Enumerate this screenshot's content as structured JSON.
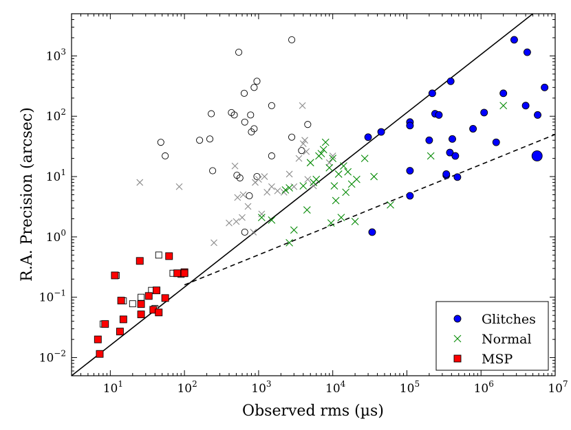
{
  "chart_data": {
    "type": "scatter",
    "xlabel": "Observed rms (µs)",
    "ylabel": "R.A. Precision (arcsec)",
    "x_scale": "log",
    "y_scale": "log",
    "xlim": [
      3,
      10000000
    ],
    "ylim": [
      0.005,
      5000
    ],
    "grid": false,
    "legend_position": "bottom-right",
    "x_ticks": [
      {
        "value": 10,
        "base": "10",
        "exp": "1"
      },
      {
        "value": 100,
        "base": "10",
        "exp": "2"
      },
      {
        "value": 1000,
        "base": "10",
        "exp": "3"
      },
      {
        "value": 10000,
        "base": "10",
        "exp": "4"
      },
      {
        "value": 100000,
        "base": "10",
        "exp": "5"
      },
      {
        "value": 1000000,
        "base": "10",
        "exp": "6"
      },
      {
        "value": 10000000,
        "base": "10",
        "exp": "7"
      }
    ],
    "y_ticks": [
      {
        "value": 0.01,
        "base": "10",
        "exp": "−2"
      },
      {
        "value": 0.1,
        "base": "10",
        "exp": "−1"
      },
      {
        "value": 1,
        "base": "10",
        "exp": "0"
      },
      {
        "value": 10,
        "base": "10",
        "exp": "1"
      },
      {
        "value": 100,
        "base": "10",
        "exp": "2"
      },
      {
        "value": 1000,
        "base": "10",
        "exp": "3"
      }
    ],
    "lines": [
      {
        "style": "solid",
        "points": [
          [
            3,
            0.005
          ],
          [
            5000000,
            5000
          ]
        ]
      },
      {
        "style": "dashed",
        "points": [
          [
            100,
            0.16
          ],
          [
            10000000,
            50
          ]
        ]
      }
    ],
    "series": [
      {
        "name": "Glitches",
        "marker": "circle",
        "color": "#0000ff",
        "points": [
          [
            30000,
            45
          ],
          [
            45000,
            55
          ],
          [
            34000,
            1.2
          ],
          [
            110000,
            80
          ],
          [
            110000,
            70
          ],
          [
            110000,
            12.5
          ],
          [
            110000,
            4.8
          ],
          [
            200000,
            40
          ],
          [
            220000,
            240
          ],
          [
            240000,
            110
          ],
          [
            270000,
            105
          ],
          [
            340000,
            10.5
          ],
          [
            340000,
            11
          ],
          [
            380000,
            25
          ],
          [
            390000,
            380
          ],
          [
            410000,
            42
          ],
          [
            450000,
            22
          ],
          [
            480000,
            9.8
          ],
          [
            780000,
            62
          ],
          [
            1100000,
            115
          ],
          [
            1600000,
            37
          ],
          [
            2000000,
            240
          ],
          [
            2800000,
            1850
          ],
          [
            4000000,
            150
          ],
          [
            4200000,
            1150
          ],
          [
            5800000,
            105
          ],
          [
            7200000,
            300
          ],
          [
            5700000,
            22
          ]
        ]
      },
      {
        "name": "Normal",
        "marker": "x",
        "color": "#008800",
        "points": [
          [
            1100,
            2.1
          ],
          [
            1500,
            1.9
          ],
          [
            2300,
            6
          ],
          [
            2600,
            6.5
          ],
          [
            2600,
            0.8
          ],
          [
            3000,
            1.3
          ],
          [
            4000,
            7
          ],
          [
            4500,
            2.8
          ],
          [
            5000,
            17
          ],
          [
            5500,
            8
          ],
          [
            6000,
            9
          ],
          [
            6500,
            22
          ],
          [
            7000,
            24
          ],
          [
            7500,
            28
          ],
          [
            8000,
            37
          ],
          [
            9000,
            14
          ],
          [
            9500,
            1.7
          ],
          [
            10000,
            20
          ],
          [
            10500,
            7
          ],
          [
            11000,
            4
          ],
          [
            12000,
            11
          ],
          [
            13000,
            2.1
          ],
          [
            14000,
            15
          ],
          [
            15000,
            5.5
          ],
          [
            16000,
            12
          ],
          [
            18000,
            7.5
          ],
          [
            20000,
            1.8
          ],
          [
            21000,
            9
          ],
          [
            27000,
            20
          ],
          [
            36000,
            10
          ],
          [
            60000,
            3.4
          ],
          [
            210000,
            22
          ],
          [
            2000000,
            150
          ]
        ]
      },
      {
        "name": "MSP",
        "marker": "square",
        "color": "#ff0000",
        "points": [
          [
            6.8,
            0.02
          ],
          [
            7.2,
            0.0115
          ],
          [
            8.5,
            0.036
          ],
          [
            11.5,
            0.23
          ],
          [
            13.5,
            0.027
          ],
          [
            14,
            0.088
          ],
          [
            15,
            0.043
          ],
          [
            25,
            0.4
          ],
          [
            26,
            0.077
          ],
          [
            26,
            0.052
          ],
          [
            33,
            0.105
          ],
          [
            38,
            0.062
          ],
          [
            42,
            0.13
          ],
          [
            45,
            0.056
          ],
          [
            55,
            0.097
          ],
          [
            62,
            0.48
          ],
          [
            80,
            0.25
          ],
          [
            100,
            0.26
          ],
          [
            100,
            0.25
          ]
        ]
      }
    ],
    "background_points": {
      "open_circles": [
        [
          48,
          37
        ],
        [
          55,
          22
        ],
        [
          160,
          40
        ],
        [
          220,
          42
        ],
        [
          230,
          110
        ],
        [
          240,
          12.5
        ],
        [
          430,
          115
        ],
        [
          470,
          105
        ],
        [
          510,
          10.5
        ],
        [
          540,
          1150
        ],
        [
          560,
          9.5
        ],
        [
          640,
          240
        ],
        [
          650,
          80
        ],
        [
          650,
          1.2
        ],
        [
          750,
          4.8
        ],
        [
          780,
          105
        ],
        [
          800,
          55
        ],
        [
          870,
          62
        ],
        [
          870,
          300
        ],
        [
          950,
          10
        ],
        [
          950,
          380
        ],
        [
          1500,
          22
        ],
        [
          1500,
          150
        ],
        [
          2800,
          1850
        ],
        [
          2800,
          45
        ],
        [
          3800,
          27
        ],
        [
          4600,
          73
        ]
      ],
      "open_squares": [
        [
          8,
          0.036
        ],
        [
          12,
          0.23
        ],
        [
          15,
          0.087
        ],
        [
          20,
          0.078
        ],
        [
          26,
          0.1
        ],
        [
          36,
          0.13
        ],
        [
          40,
          0.065
        ],
        [
          45,
          0.5
        ],
        [
          70,
          0.25
        ],
        [
          90,
          0.24
        ]
      ],
      "gray_x": [
        [
          25,
          8
        ],
        [
          85,
          6.8
        ],
        [
          250,
          0.8
        ],
        [
          400,
          1.7
        ],
        [
          480,
          15
        ],
        [
          500,
          1.8
        ],
        [
          520,
          4.5
        ],
        [
          600,
          2.1
        ],
        [
          620,
          5
        ],
        [
          720,
          3.2
        ],
        [
          850,
          1.2
        ],
        [
          900,
          8
        ],
        [
          1000,
          9
        ],
        [
          1100,
          2.4
        ],
        [
          1200,
          10
        ],
        [
          1300,
          5.5
        ],
        [
          1500,
          6.8
        ],
        [
          1800,
          5.8
        ],
        [
          2200,
          5.5
        ],
        [
          2600,
          11
        ],
        [
          3000,
          6.8
        ],
        [
          3500,
          20
        ],
        [
          3900,
          150
        ],
        [
          4000,
          35
        ],
        [
          4200,
          40
        ],
        [
          4400,
          26
        ],
        [
          4600,
          9
        ],
        [
          5500,
          7
        ],
        [
          9000,
          17
        ],
        [
          10000,
          22
        ]
      ]
    }
  }
}
